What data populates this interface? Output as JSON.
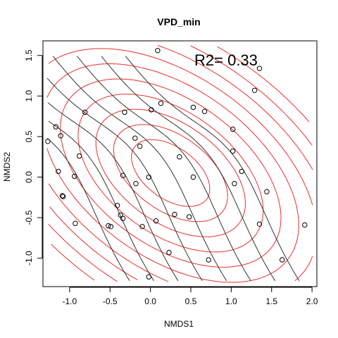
{
  "chart_data": {
    "type": "scatter",
    "title": "VPD_min",
    "xlabel": "NMDS1",
    "ylabel": "NMDS2",
    "xlim": [
      -1.33,
      2.06
    ],
    "ylim": [
      -1.35,
      1.68
    ],
    "x_ticks": [
      -1.0,
      -0.5,
      0.0,
      0.5,
      1.0,
      1.5,
      2.0
    ],
    "x_tick_labels": [
      "-1.0",
      "-0.5",
      "0.0",
      "0.5",
      "1.0",
      "1.5",
      "2.0"
    ],
    "y_ticks": [
      -1.0,
      -0.5,
      0.0,
      0.5,
      1.0,
      1.5
    ],
    "y_tick_labels": [
      "-1.0",
      "-0.5",
      "0.0",
      "0.5",
      "1.0",
      "1.5"
    ],
    "annotation": "R2= 0.33",
    "grid": false,
    "colors": {
      "points": "#000000",
      "red_contours": "#e8302a",
      "dark_contours": "#333333"
    },
    "points": [
      {
        "x": 0.09,
        "y": 1.56
      },
      {
        "x": 1.35,
        "y": 1.34
      },
      {
        "x": 1.29,
        "y": 1.07
      },
      {
        "x": -1.17,
        "y": 0.62
      },
      {
        "x": -0.81,
        "y": 0.8
      },
      {
        "x": -1.11,
        "y": 0.51
      },
      {
        "x": -1.27,
        "y": 0.44
      },
      {
        "x": -0.32,
        "y": 0.8
      },
      {
        "x": 0.13,
        "y": 0.91
      },
      {
        "x": 0.01,
        "y": 0.83
      },
      {
        "x": 0.53,
        "y": 0.86
      },
      {
        "x": 0.67,
        "y": 0.81
      },
      {
        "x": 1.02,
        "y": 0.59
      },
      {
        "x": -0.19,
        "y": 0.48
      },
      {
        "x": -0.13,
        "y": 0.38
      },
      {
        "x": -0.88,
        "y": 0.26
      },
      {
        "x": 0.36,
        "y": 0.25
      },
      {
        "x": 1.02,
        "y": 0.32
      },
      {
        "x": -1.14,
        "y": 0.07
      },
      {
        "x": -0.94,
        "y": 0.01
      },
      {
        "x": -0.34,
        "y": 0.02
      },
      {
        "x": -0.02,
        "y": 0.0
      },
      {
        "x": 0.53,
        "y": 0.0
      },
      {
        "x": 1.13,
        "y": 0.07
      },
      {
        "x": 1.04,
        "y": -0.08
      },
      {
        "x": -0.18,
        "y": -0.08
      },
      {
        "x": 1.44,
        "y": -0.18
      },
      {
        "x": -1.09,
        "y": -0.23
      },
      {
        "x": -1.08,
        "y": -0.24
      },
      {
        "x": -0.41,
        "y": -0.35
      },
      {
        "x": -0.37,
        "y": -0.47
      },
      {
        "x": -0.34,
        "y": -0.51
      },
      {
        "x": 0.3,
        "y": -0.46
      },
      {
        "x": 0.48,
        "y": -0.49
      },
      {
        "x": 0.07,
        "y": -0.54
      },
      {
        "x": -0.93,
        "y": -0.57
      },
      {
        "x": -0.52,
        "y": -0.6
      },
      {
        "x": -0.49,
        "y": -0.61
      },
      {
        "x": -0.1,
        "y": -0.61
      },
      {
        "x": 1.35,
        "y": -0.58
      },
      {
        "x": 1.91,
        "y": -0.59
      },
      {
        "x": 0.23,
        "y": -0.93
      },
      {
        "x": 0.72,
        "y": -1.02
      },
      {
        "x": 1.63,
        "y": -1.02
      },
      {
        "x": -0.02,
        "y": -1.23
      }
    ]
  }
}
